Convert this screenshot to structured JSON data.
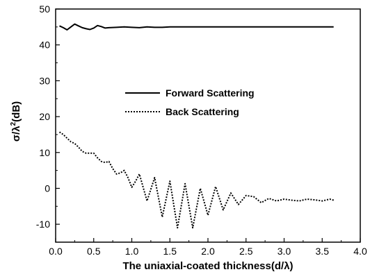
{
  "chart_data": {
    "type": "line",
    "xlabel": "The uniaxial-coated thickness(d/λ)",
    "ylabel_parts": {
      "sigma": "σ/λ",
      "sup": "2",
      "unit": "(dB)"
    },
    "xlim": [
      0.0,
      4.0
    ],
    "ylim": [
      -15,
      50
    ],
    "xticks": [
      "0.0",
      "0.5",
      "1.0",
      "1.5",
      "2.0",
      "2.5",
      "3.0",
      "3.5",
      "4.0"
    ],
    "yticks": [
      "-10",
      "0",
      "10",
      "20",
      "30",
      "40",
      "50"
    ],
    "grid": false,
    "legend_position": "center",
    "series": [
      {
        "name": "Forward Scattering",
        "style": "solid",
        "color": "#000000",
        "x": [
          0.05,
          0.1,
          0.15,
          0.2,
          0.25,
          0.3,
          0.35,
          0.4,
          0.45,
          0.5,
          0.55,
          0.6,
          0.65,
          0.7,
          0.8,
          0.9,
          1.0,
          1.1,
          1.2,
          1.3,
          1.4,
          1.5,
          1.75,
          2.0,
          2.5,
          3.0,
          3.5,
          3.65
        ],
        "y": [
          45.3,
          44.8,
          44.2,
          45.0,
          45.8,
          45.3,
          44.8,
          44.5,
          44.3,
          44.7,
          45.4,
          45.1,
          44.7,
          44.8,
          44.9,
          45.0,
          44.9,
          44.8,
          45.0,
          44.9,
          44.9,
          45.0,
          45.0,
          45.0,
          45.0,
          45.0,
          45.0,
          45.0
        ]
      },
      {
        "name": "Back Scattering",
        "style": "dotted",
        "color": "#000000",
        "x": [
          0.05,
          0.1,
          0.15,
          0.2,
          0.25,
          0.3,
          0.35,
          0.4,
          0.45,
          0.5,
          0.55,
          0.6,
          0.65,
          0.7,
          0.75,
          0.8,
          0.85,
          0.9,
          0.95,
          1.0,
          1.05,
          1.1,
          1.2,
          1.3,
          1.4,
          1.5,
          1.6,
          1.7,
          1.8,
          1.9,
          2.0,
          2.1,
          2.2,
          2.3,
          2.4,
          2.5,
          2.6,
          2.7,
          2.8,
          2.9,
          3.0,
          3.1,
          3.2,
          3.3,
          3.4,
          3.5,
          3.6,
          3.65
        ],
        "y": [
          15.7,
          15.0,
          14.0,
          13.0,
          12.5,
          11.5,
          10.3,
          9.8,
          9.8,
          9.8,
          8.5,
          7.5,
          7.2,
          7.5,
          5.5,
          4.0,
          4.3,
          5.0,
          3.0,
          0.3,
          2.0,
          4.0,
          -3.5,
          3.0,
          -8.0,
          2.0,
          -11.0,
          1.3,
          -11.0,
          0.0,
          -7.5,
          0.5,
          -6.0,
          -1.3,
          -4.5,
          -2.0,
          -2.3,
          -4.0,
          -2.8,
          -3.5,
          -3.0,
          -3.3,
          -3.5,
          -3.0,
          -3.2,
          -3.5,
          -3.0,
          -3.3
        ]
      }
    ]
  }
}
